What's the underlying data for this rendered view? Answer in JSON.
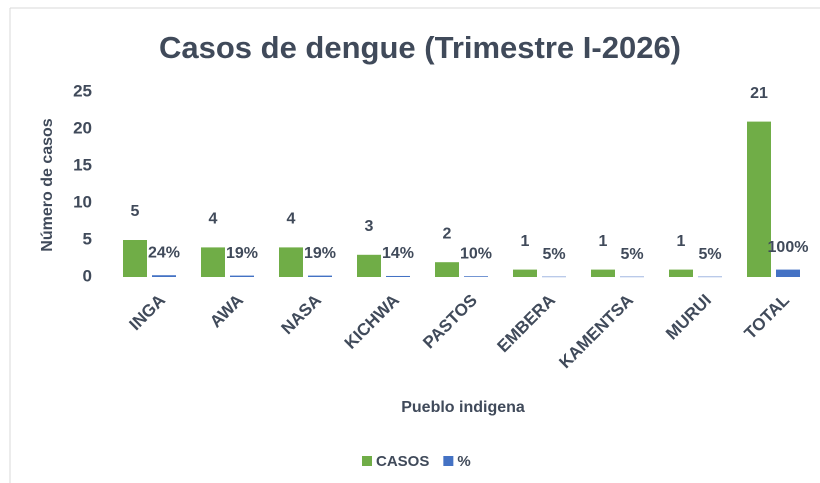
{
  "chart_data": {
    "type": "bar",
    "title": "Casos de dengue (Trimestre I-2026)",
    "xlabel": "Pueblo indigena",
    "ylabel": "Número de casos",
    "categories": [
      "INGA",
      "AWA",
      "NASA",
      "KICHWA",
      "PASTOS",
      "EMBERA",
      "KAMENTSA",
      "MURUI",
      "TOTAL"
    ],
    "series": [
      {
        "name": "CASOS",
        "color": "#70ad47",
        "values": [
          5,
          4,
          4,
          3,
          2,
          1,
          1,
          1,
          21
        ]
      },
      {
        "name": "%",
        "color": "#4472c4",
        "values": [
          0.24,
          0.19,
          0.19,
          0.14,
          0.1,
          0.05,
          0.05,
          0.05,
          1.0
        ],
        "value_labels": [
          "24%",
          "19%",
          "19%",
          "14%",
          "10%",
          "5%",
          "5%",
          "5%",
          "100%"
        ]
      }
    ],
    "ylim": [
      0,
      25
    ],
    "yticks": [
      0,
      5,
      10,
      15,
      20,
      25
    ],
    "grid": false,
    "legend": "bottom"
  }
}
